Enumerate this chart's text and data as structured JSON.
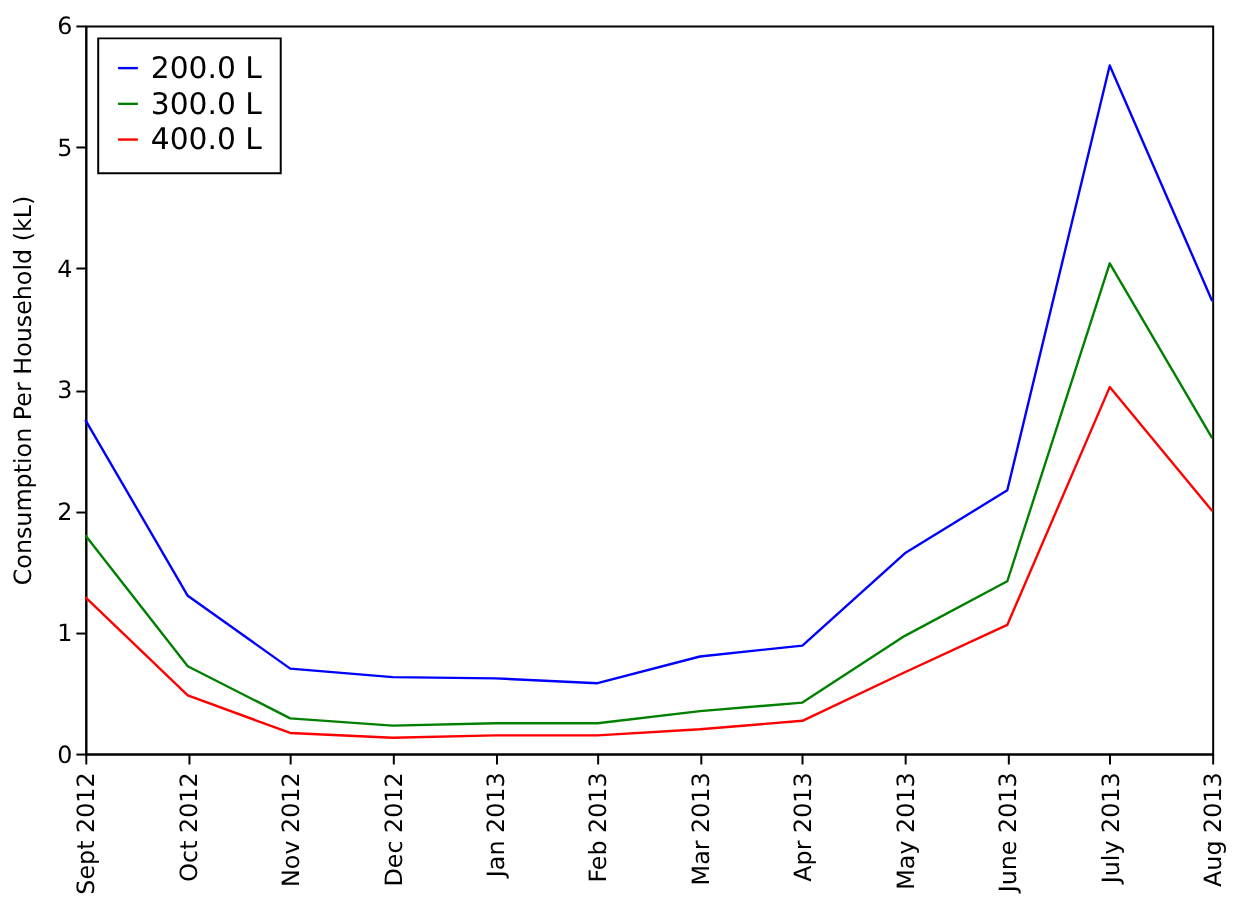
{
  "chart_data": {
    "type": "line",
    "ylabel": "Consumption Per Household (kL)",
    "categories": [
      "Sept 2012",
      "Oct 2012",
      "Nov 2012",
      "Dec 2012",
      "Jan 2013",
      "Feb 2013",
      "Mar 2013",
      "Apr 2013",
      "May 2013",
      "June 2013",
      "July 2013",
      "Aug 2013"
    ],
    "series": [
      {
        "name": "200.0 L",
        "color": "#0000ff",
        "values": [
          2.75,
          1.3,
          0.7,
          0.63,
          0.62,
          0.58,
          0.8,
          0.89,
          1.65,
          2.17,
          5.67,
          3.73
        ]
      },
      {
        "name": "300.0 L",
        "color": "#008000",
        "values": [
          1.8,
          0.72,
          0.29,
          0.23,
          0.25,
          0.25,
          0.35,
          0.42,
          0.97,
          1.42,
          4.04,
          2.6
        ]
      },
      {
        "name": "400.0 L",
        "color": "#ff0000",
        "values": [
          1.29,
          0.48,
          0.17,
          0.13,
          0.15,
          0.15,
          0.2,
          0.27,
          0.67,
          1.06,
          3.02,
          2.0
        ]
      }
    ],
    "ylim": [
      0,
      6
    ],
    "yticks": [
      0,
      1,
      2,
      3,
      4,
      5,
      6
    ],
    "grid": false,
    "legend": "top left",
    "marker": "none",
    "line_style": "solid"
  }
}
